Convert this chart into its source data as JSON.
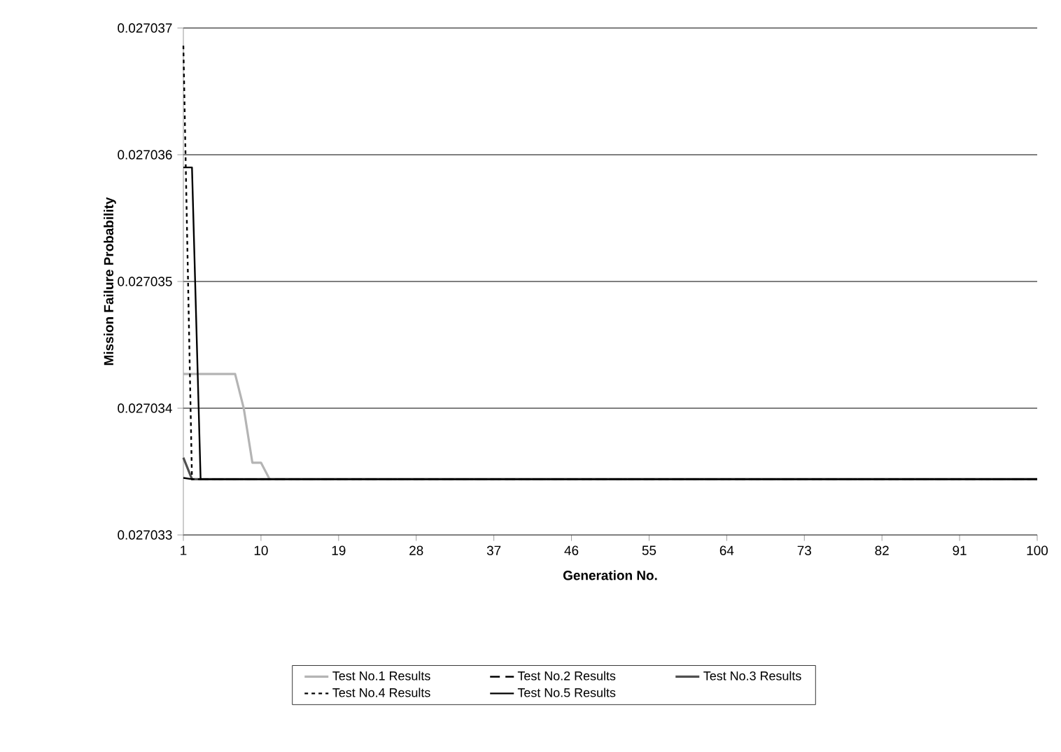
{
  "chart_data": {
    "type": "line",
    "xlabel": "Generation No.",
    "ylabel": "Mission Failure Probability",
    "xlim": [
      1,
      100
    ],
    "xticks": [
      1,
      10,
      19,
      28,
      37,
      46,
      55,
      64,
      73,
      82,
      91,
      100
    ],
    "ylim": [
      0.027033,
      0.027037
    ],
    "yticks": [
      0.027033,
      0.027034,
      0.027035,
      0.027036,
      0.027037
    ],
    "grid": "y",
    "legend": "bottom",
    "marker": "none",
    "series": [
      {
        "name": "Test No.1 Results",
        "color": "#b4b4b4",
        "line_style": "solid",
        "x": [
          1,
          7,
          8,
          9,
          10,
          11,
          100
        ],
        "values": [
          0.02703427,
          0.02703427,
          0.027034,
          0.02703357,
          0.02703357,
          0.02703344,
          0.02703344
        ]
      },
      {
        "name": "Test No.2 Results",
        "color": "#000000",
        "line_style": "dashed",
        "x": [
          1,
          2,
          100
        ],
        "values": [
          0.02703345,
          0.02703344,
          0.02703344
        ]
      },
      {
        "name": "Test No.3 Results",
        "color": "#505050",
        "line_style": "solid",
        "x": [
          1,
          2,
          100
        ],
        "values": [
          0.02703361,
          0.02703344,
          0.02703344
        ]
      },
      {
        "name": "Test No.4 Results",
        "color": "#000000",
        "line_style": "dotted",
        "x": [
          1,
          2,
          100
        ],
        "values": [
          0.02703686,
          0.02703344,
          0.02703344
        ]
      },
      {
        "name": "Test No.5 Results",
        "color": "#000000",
        "line_style": "solid",
        "x": [
          1,
          2,
          3,
          100
        ],
        "values": [
          0.0270359,
          0.0270359,
          0.02703344,
          0.02703344
        ]
      }
    ]
  }
}
